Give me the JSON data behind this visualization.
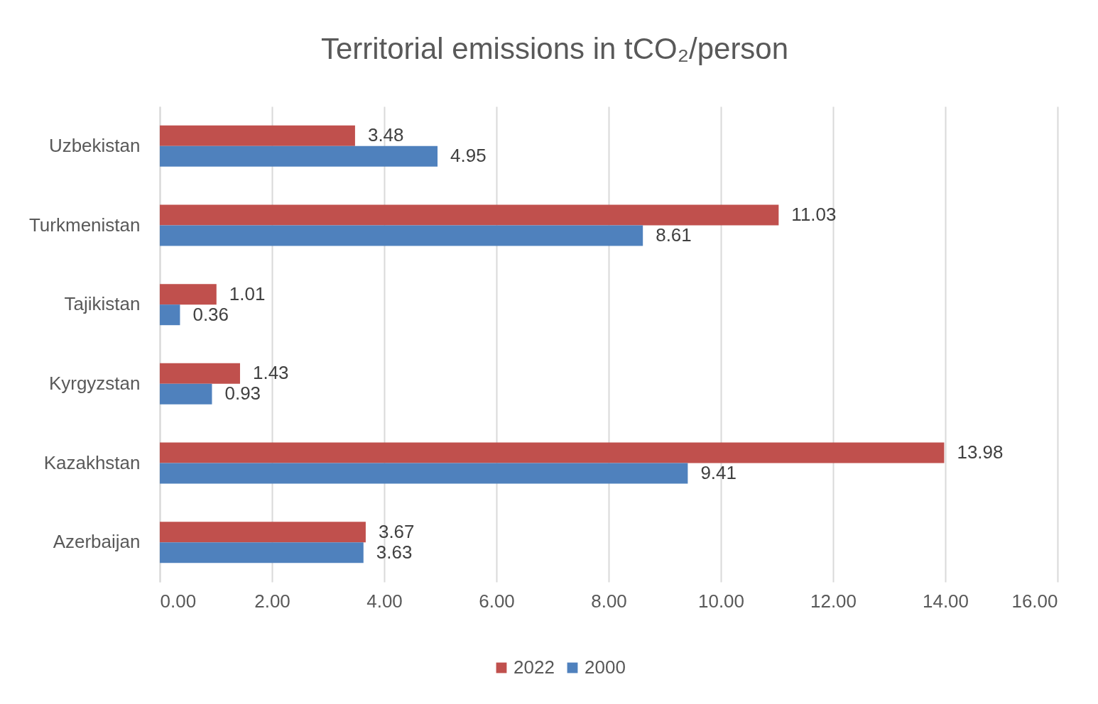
{
  "chart_data": {
    "type": "bar",
    "orientation": "horizontal",
    "title": "Territorial emissions in tCO₂/person",
    "categories": [
      "Uzbekistan",
      "Turkmenistan",
      "Tajikistan",
      "Kyrgyzstan",
      "Kazakhstan",
      "Azerbaijan"
    ],
    "series": [
      {
        "name": "2022",
        "color": "#c0504d",
        "values": [
          3.48,
          11.03,
          1.01,
          1.43,
          13.98,
          3.67
        ]
      },
      {
        "name": "2000",
        "color": "#4f81bd",
        "values": [
          4.95,
          8.61,
          0.36,
          0.93,
          9.41,
          3.63
        ]
      }
    ],
    "xlim": [
      0,
      16
    ],
    "xticks": [
      {
        "value": 0,
        "label": "0.00"
      },
      {
        "value": 2,
        "label": "2.00"
      },
      {
        "value": 4,
        "label": "4.00"
      },
      {
        "value": 6,
        "label": "6.00"
      },
      {
        "value": 8,
        "label": "8.00"
      },
      {
        "value": 10,
        "label": "10.00"
      },
      {
        "value": 12,
        "label": "12.00"
      },
      {
        "value": 14,
        "label": "14.00"
      },
      {
        "value": 16,
        "label": "16.00"
      }
    ],
    "grid": "x",
    "legend": "bottom",
    "data_labels": true
  }
}
